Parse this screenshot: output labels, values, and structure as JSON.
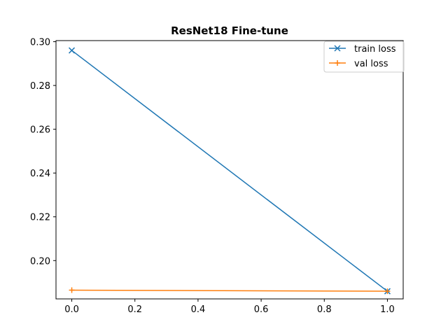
{
  "chart_data": {
    "type": "line",
    "title": "ResNet18 Fine-tune",
    "xlabel": "",
    "ylabel": "",
    "xlim": [
      -0.05,
      1.05
    ],
    "ylim": [
      0.1825,
      0.3005
    ],
    "x_ticks": [
      "0.0",
      "0.2",
      "0.4",
      "0.6",
      "0.8",
      "1.0"
    ],
    "y_ticks": [
      "0.20",
      "0.22",
      "0.24",
      "0.26",
      "0.28",
      "0.30"
    ],
    "grid": false,
    "legend_position": "upper right",
    "series": [
      {
        "name": "train loss",
        "x": [
          0.0,
          1.0
        ],
        "y": [
          0.296,
          0.186
        ],
        "color": "#1f77b4",
        "marker": "x"
      },
      {
        "name": "val loss",
        "x": [
          0.0,
          1.0
        ],
        "y": [
          0.1865,
          0.186
        ],
        "color": "#ff7f0e",
        "marker": "+"
      }
    ]
  }
}
